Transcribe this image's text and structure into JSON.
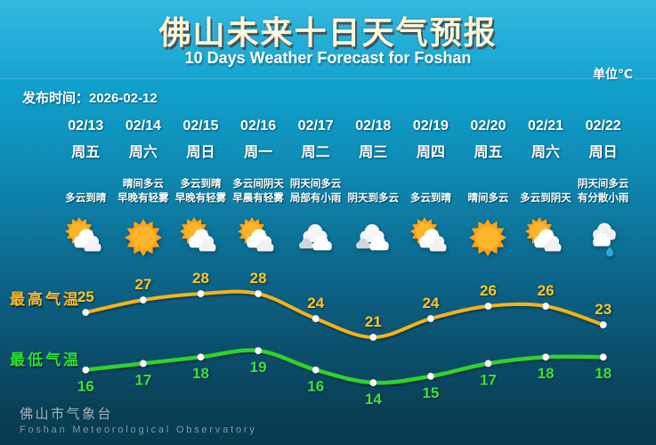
{
  "header": {
    "title": "佛山未来十日天气预报",
    "subtitle": "10 Days Weather Forecast for Foshan",
    "unit": "单位℃",
    "publish": "发布时间：2026-02-12"
  },
  "series_labels": {
    "high": "最高气温",
    "low": "最低气温"
  },
  "days": [
    {
      "date": "02/13",
      "weekday": "周五",
      "desc": [
        "多云到晴"
      ],
      "icon": "sun-cloud",
      "high": 25,
      "low": 16
    },
    {
      "date": "02/14",
      "weekday": "周六",
      "desc": [
        "晴间多云",
        "早晚有轻雾"
      ],
      "icon": "sun",
      "high": 27,
      "low": 17
    },
    {
      "date": "02/15",
      "weekday": "周日",
      "desc": [
        "多云到晴",
        "早晚有轻雾"
      ],
      "icon": "sun-cloud",
      "high": 28,
      "low": 18
    },
    {
      "date": "02/16",
      "weekday": "周一",
      "desc": [
        "多云间阴天",
        "早晨有轻雾"
      ],
      "icon": "sun-cloud",
      "high": 28,
      "low": 19
    },
    {
      "date": "02/17",
      "weekday": "周二",
      "desc": [
        "阴天间多云",
        "局部有小雨"
      ],
      "icon": "cloudy",
      "high": 24,
      "low": 16
    },
    {
      "date": "02/18",
      "weekday": "周三",
      "desc": [
        "阴天到多云"
      ],
      "icon": "cloudy",
      "high": 21,
      "low": 14
    },
    {
      "date": "02/19",
      "weekday": "周四",
      "desc": [
        "多云到晴"
      ],
      "icon": "sun-cloud",
      "high": 24,
      "low": 15
    },
    {
      "date": "02/20",
      "weekday": "周五",
      "desc": [
        "晴间多云"
      ],
      "icon": "sun",
      "high": 26,
      "low": 17
    },
    {
      "date": "02/21",
      "weekday": "周六",
      "desc": [
        "多云到阴天"
      ],
      "icon": "sun-cloud",
      "high": 26,
      "low": 18
    },
    {
      "date": "02/22",
      "weekday": "周日",
      "desc": [
        "阴天间多云",
        "有分散小雨"
      ],
      "icon": "rain",
      "high": 23,
      "low": 18
    }
  ],
  "chart_data": {
    "type": "line",
    "categories": [
      "02/13",
      "02/14",
      "02/15",
      "02/16",
      "02/17",
      "02/18",
      "02/19",
      "02/20",
      "02/21",
      "02/22"
    ],
    "series": [
      {
        "name": "最高气温",
        "color": "#f5b318",
        "values": [
          25,
          27,
          28,
          28,
          24,
          21,
          24,
          26,
          26,
          23
        ]
      },
      {
        "name": "最低气温",
        "color": "#2ed42e",
        "values": [
          16,
          17,
          18,
          19,
          16,
          14,
          15,
          17,
          18,
          18
        ]
      }
    ],
    "unit": "℃",
    "title": "佛山未来十日天气预报",
    "legend_position": "left",
    "grid": false,
    "data_labels": true
  },
  "colors": {
    "high_line": "#f5b318",
    "high_text": "#ffc824",
    "low_line": "#2ed42e",
    "low_text": "#3ae43a",
    "marker": "#ffffff"
  },
  "footer": {
    "cn": "佛山市气象台",
    "en": "Foshan Meteorological Observatory"
  }
}
